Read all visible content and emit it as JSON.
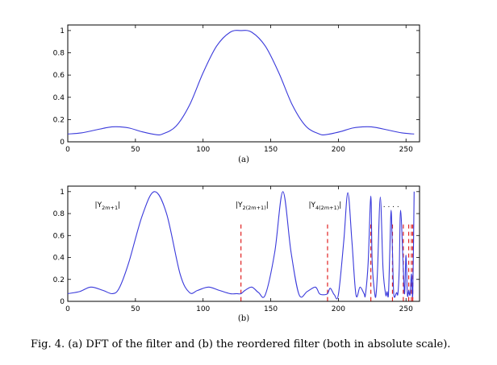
{
  "caption": "Fig. 4.   (a) DFT of the filter and (b) the reordered filter (both in absolute scale).",
  "chart_data": [
    {
      "type": "line",
      "panel_label": "(a)",
      "xlim": [
        0,
        260
      ],
      "ylim": [
        0,
        1.05
      ],
      "xticks": [
        0,
        50,
        100,
        150,
        200,
        250
      ],
      "yticks": [
        0,
        0.2,
        0.4,
        0.6,
        0.8,
        1
      ],
      "ytick_labels": [
        "0",
        "0.2",
        "0.4",
        "0.6",
        "0.8",
        "1"
      ],
      "line_color": "#3a3adb",
      "x": [
        0,
        10,
        20,
        30,
        36,
        45,
        55,
        65,
        70,
        80,
        90,
        100,
        110,
        120,
        128,
        136,
        146,
        156,
        166,
        176,
        186,
        191,
        201,
        211,
        221,
        227,
        237,
        247,
        256
      ],
      "y": [
        0.07,
        0.08,
        0.105,
        0.13,
        0.135,
        0.125,
        0.09,
        0.065,
        0.07,
        0.14,
        0.33,
        0.62,
        0.86,
        0.985,
        1.0,
        0.985,
        0.86,
        0.62,
        0.33,
        0.14,
        0.07,
        0.065,
        0.09,
        0.125,
        0.135,
        0.13,
        0.105,
        0.08,
        0.07
      ]
    },
    {
      "type": "line",
      "panel_label": "(b)",
      "xlim": [
        0,
        260
      ],
      "ylim": [
        0,
        1.05
      ],
      "xticks": [
        0,
        50,
        100,
        150,
        200,
        250
      ],
      "yticks": [
        0,
        0.2,
        0.4,
        0.6,
        0.8,
        1
      ],
      "ytick_labels": [
        "0",
        "0.2",
        "0.4",
        "0.6",
        "0.8",
        "1"
      ],
      "line_color": "#3a3adb",
      "divider_color": "#e02020",
      "x": [
        0,
        9,
        17,
        26,
        33,
        38,
        45,
        55,
        64,
        73,
        83,
        90,
        96,
        104,
        112,
        120,
        125,
        128,
        131,
        136,
        141,
        146,
        153,
        159,
        165,
        171,
        177,
        183,
        186,
        189,
        192,
        194,
        197,
        200,
        204,
        207,
        210,
        213,
        216,
        219,
        220,
        222,
        224,
        225,
        227,
        228,
        229,
        231,
        233,
        235,
        236,
        237,
        238,
        239,
        240,
        241,
        243,
        244,
        245,
        246,
        248,
        249,
        250,
        251,
        252,
        253,
        254,
        255,
        256
      ],
      "y": [
        0.07,
        0.09,
        0.13,
        0.1,
        0.07,
        0.12,
        0.35,
        0.78,
        1.0,
        0.8,
        0.25,
        0.08,
        0.1,
        0.13,
        0.1,
        0.07,
        0.07,
        0.07,
        0.1,
        0.13,
        0.08,
        0.06,
        0.45,
        1.0,
        0.45,
        0.06,
        0.09,
        0.13,
        0.07,
        0.06,
        0.07,
        0.12,
        0.06,
        0.06,
        0.55,
        0.99,
        0.55,
        0.06,
        0.13,
        0.07,
        0.06,
        0.35,
        0.96,
        0.35,
        0.06,
        0.08,
        0.3,
        0.95,
        0.3,
        0.06,
        0.09,
        0.06,
        0.45,
        0.83,
        0.45,
        0.06,
        0.08,
        0.07,
        0.3,
        0.83,
        0.3,
        0.07,
        0.42,
        0.06,
        0.1,
        0.06,
        0.25,
        0.07,
        1.0
      ],
      "dividers": [
        128,
        192,
        224,
        240,
        248,
        252,
        254,
        255
      ],
      "annotations": [
        {
          "label": "|Y",
          "sub": "2m+1",
          "close": "|",
          "x": 20,
          "y": 0.86
        },
        {
          "label": "|Y",
          "sub": "2(2m+1)",
          "close": "|",
          "x": 124,
          "y": 0.86
        },
        {
          "label": "|Y",
          "sub": "4(2m+1)",
          "close": "|",
          "x": 178,
          "y": 0.86
        },
        {
          "label": ". . . .",
          "sub": "",
          "close": "",
          "x": 233,
          "y": 0.86
        }
      ]
    }
  ]
}
